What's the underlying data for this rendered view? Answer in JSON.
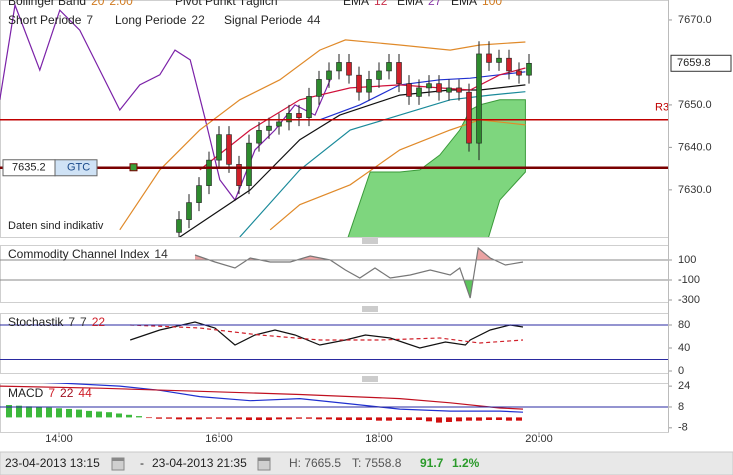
{
  "chart_data": [
    {
      "type": "candlestick",
      "legend": [
        {
          "name": "Bollinger Band",
          "params": [
            {
              "value": 20,
              "color": "#d07a20"
            },
            {
              "value": "2.00",
              "color": "#d07a20"
            }
          ]
        },
        {
          "name": "Pivot Punkt Täglich",
          "params": []
        },
        {
          "name": "EMA",
          "params": [
            {
              "value": 12,
              "color": "#c8304a"
            }
          ]
        },
        {
          "name": "EMA",
          "params": [
            {
              "value": 27,
              "color": "#8a3aa8"
            }
          ]
        },
        {
          "name": "EMA",
          "params": [
            {
              "value": 100,
              "color": "#d07a20"
            }
          ]
        },
        {
          "name": "Short Periode",
          "params": [
            {
              "value": 7,
              "color": "#333333"
            }
          ]
        },
        {
          "name": "Long Periode",
          "params": [
            {
              "value": 22,
              "color": "#333333"
            }
          ]
        },
        {
          "name": "Signal Periode",
          "params": [
            {
              "value": 44,
              "color": "#333333"
            }
          ]
        }
      ],
      "annotation": "Daten sind indikativ",
      "ylim": [
        7618.9,
        7674.7
      ],
      "yticks": [
        {
          "value": 7630,
          "label": "7630.0"
        },
        {
          "value": 7640,
          "label": "7640.0"
        },
        {
          "value": 7650,
          "label": "7650.0"
        },
        {
          "value": 7670,
          "label": "7670.0"
        }
      ],
      "up_color": "#2e8b2e",
      "down_color": "#d0202a",
      "x": [
        15.5,
        15.625,
        15.75,
        15.875,
        16,
        16.125,
        16.25,
        16.375,
        16.5,
        16.625,
        16.75,
        16.875,
        17,
        17.125,
        17.25,
        17.375,
        17.5,
        17.625,
        17.75,
        17.875,
        18,
        18.125,
        18.25,
        18.375,
        18.5,
        18.625,
        18.75,
        18.875,
        19,
        19.125,
        19.25,
        19.375,
        19.5,
        19.625,
        19.75,
        19.875
      ],
      "open": [
        7620,
        7623,
        7627,
        7631,
        7637,
        7643,
        7636,
        7631,
        7641,
        7644,
        7645,
        7646,
        7648,
        7647,
        7652,
        7656,
        7658,
        7660,
        7657,
        7653,
        7656,
        7658,
        7660,
        7655,
        7652,
        7654,
        7655,
        7653,
        7654,
        7653,
        7641,
        7662,
        7660,
        7661,
        7658,
        7657
      ],
      "high": [
        7625,
        7629,
        7633,
        7639,
        7645,
        7645,
        7638,
        7643,
        7646,
        7647,
        7648,
        7650,
        7650,
        7654,
        7658,
        7660,
        7662,
        7662,
        7659,
        7658,
        7660,
        7662,
        7662,
        7657,
        7656,
        7657,
        7657,
        7656,
        7656,
        7655,
        7665,
        7665,
        7663,
        7663,
        7660,
        7662
      ],
      "low": [
        7618,
        7621,
        7625,
        7629,
        7635,
        7634,
        7629,
        7629,
        7639,
        7642,
        7643,
        7644,
        7645,
        7645,
        7650,
        7654,
        7656,
        7655,
        7651,
        7651,
        7654,
        7656,
        7653,
        7650,
        7650,
        7652,
        7651,
        7651,
        7651,
        7639,
        7637,
        7658,
        7658,
        7656,
        7655,
        7655
      ],
      "close": [
        7623,
        7627,
        7631,
        7637,
        7643,
        7636,
        7631,
        7641,
        7644,
        7645,
        7646,
        7648,
        7647,
        7652,
        7656,
        7658,
        7660,
        7657,
        7653,
        7656,
        7658,
        7660,
        7655,
        7652,
        7654,
        7655,
        7653,
        7654,
        7653,
        7641,
        7662,
        7660,
        7661,
        7658,
        7657,
        7659.8
      ],
      "series": [
        {
          "type": "area",
          "color": "#7ed67e",
          "border": "#3a9a3a",
          "x": [
            17.58,
            17.89,
            18.26,
            18.51,
            18.76,
            19.01,
            19.14,
            19.26,
            19.51,
            19.83
          ],
          "values": [
            7617,
            7634.2,
            7634.2,
            7634.7,
            7638.2,
            7644.1,
            7648.8,
            7650.0,
            7651.2,
            7651.2
          ],
          "lower": [
            7612,
            7612,
            7612,
            7612,
            7612,
            7612,
            7612,
            7612,
            7627.6,
            7634.2
          ]
        },
        {
          "type": "line",
          "color": "#7b22a8",
          "x": [
            13.26,
            13.45,
            13.76,
            14.01,
            14.26,
            14.51,
            14.76,
            15.01,
            15.26,
            15.45,
            15.64,
            15.83,
            16.01,
            16.2,
            16.45,
            16.7,
            16.95,
            17.2,
            17.39
          ],
          "values": [
            7651.2,
            7673.5,
            7658.2,
            7672.3,
            7667.6,
            7658.2,
            7648.8,
            7654.7,
            7657.1,
            7662.9,
            7660.6,
            7646.5,
            7632.4,
            7627.6,
            7639.4,
            7644.1,
            7650.0,
            7647.6,
            7655.9
          ]
        },
        {
          "type": "line",
          "color": "#e08a2a",
          "x": [
            14.76,
            15.26,
            15.76,
            16.26,
            16.76,
            17.26,
            17.58,
            18.26,
            18.89,
            19.26,
            19.83
          ],
          "values": [
            7620.6,
            7634.7,
            7644.1,
            7651.2,
            7655.9,
            7662.9,
            7665.3,
            7664.1,
            7662.9,
            7664.1,
            7664.8
          ]
        },
        {
          "type": "line",
          "color": "#e08a2a",
          "x": [
            16.64,
            17.01,
            17.64,
            18.26,
            18.89,
            19.26,
            19.83
          ],
          "values": [
            7620.6,
            7626.5,
            7631.2,
            7639.4,
            7644.1,
            7646.5,
            7645.3
          ]
        },
        {
          "type": "line",
          "color": "#111111",
          "x": [
            15.51,
            16.39,
            17.01,
            17.51,
            18.26,
            18.89,
            19.26,
            19.83
          ],
          "values": [
            7618.9,
            7630.0,
            7641.8,
            7647.6,
            7652.3,
            7653.5,
            7653.5,
            7654.7
          ]
        },
        {
          "type": "line",
          "color": "#2030d0",
          "x": [
            17.26,
            17.76,
            18.26,
            18.76,
            19.14,
            19.83
          ],
          "values": [
            7646.5,
            7650.0,
            7654.7,
            7655.9,
            7656.3,
            7657.8
          ]
        },
        {
          "type": "line",
          "color": "#d0103a",
          "x": [
            15.76,
            16.39,
            17.01,
            17.64,
            18.26,
            18.76,
            19.14,
            19.51,
            19.83
          ],
          "values": [
            7634.7,
            7644.1,
            7651.2,
            7654.0,
            7654.7,
            7654.0,
            7653.5,
            7657.1,
            7658.7
          ]
        },
        {
          "type": "line",
          "color": "#1a8a9a",
          "x": [
            16.26,
            17.01,
            17.64,
            18.26,
            18.89,
            19.39,
            19.83
          ],
          "values": [
            7618.9,
            7634.7,
            7644.1,
            7647.6,
            7651.2,
            7652.3,
            7653.1
          ]
        }
      ],
      "levels": [
        {
          "value": 7646.5,
          "label": "R3",
          "color": "#c00000"
        }
      ],
      "order": {
        "price": 7635.2,
        "type": "GTC",
        "color": "#7a0000"
      },
      "last": 7659.8
    },
    {
      "type": "line",
      "legend": [
        {
          "name": "Commodity Channel Index",
          "params": [
            {
              "value": 14,
              "color": "#333333"
            }
          ]
        }
      ],
      "ylim": [
        -320,
        250
      ],
      "yticks": [
        100,
        -100,
        -300
      ],
      "levels": [
        100,
        -100
      ],
      "level_color": "#888888",
      "series": [
        {
          "type": "line",
          "color": "#777777",
          "x": [
            15.7,
            15.95,
            16.2,
            16.39,
            16.64,
            16.89,
            17.14,
            17.39,
            17.58,
            17.76,
            17.95,
            18.14,
            18.39,
            18.64,
            18.89,
            19.01,
            19.14,
            19.24,
            19.39,
            19.58,
            19.8
          ],
          "values": [
            150,
            80,
            20,
            120,
            80,
            80,
            140,
            100,
            0,
            -80,
            20,
            -80,
            -50,
            0,
            -50,
            20,
            -280,
            220,
            120,
            50,
            80
          ],
          "fills": [
            {
              "level": 100,
              "side": "above",
              "color": "#eba3a3"
            },
            {
              "level": -100,
              "side": "below",
              "color": "#5cc45c"
            }
          ]
        }
      ]
    },
    {
      "type": "line",
      "legend": [
        {
          "name": "Stochastik",
          "params": [
            {
              "value": 7,
              "color": "#333333"
            },
            {
              "value": 7,
              "color": "#333333"
            },
            {
              "value": 22,
              "color": "#d0202a"
            }
          ]
        }
      ],
      "ylim": [
        -3.5,
        100.9
      ],
      "yticks": [
        80,
        40,
        0
      ],
      "levels": [
        80,
        20
      ],
      "level_color": "#2a2aa0",
      "series": [
        {
          "type": "line",
          "color": "#111111",
          "x": [
            14.89,
            15.26,
            15.7,
            15.95,
            16.2,
            16.45,
            16.7,
            16.95,
            17.26,
            17.58,
            17.83,
            18.14,
            18.51,
            18.83,
            19.08,
            19.14,
            19.39,
            19.64,
            19.8
          ],
          "values": [
            53.9,
            71.3,
            85.2,
            74.8,
            45.2,
            62.6,
            71.3,
            62.6,
            45.2,
            53.9,
            62.6,
            57.4,
            40.0,
            50.4,
            45.2,
            53.9,
            71.3,
            80.0,
            76.5
          ]
        },
        {
          "type": "line",
          "color": "#d0202a",
          "dashed": true,
          "x": [
            14.89,
            15.76,
            16.51,
            17.26,
            18.01,
            18.76,
            19.26,
            19.8
          ],
          "values": [
            80,
            74.8,
            62.6,
            53.9,
            53.9,
            57.4,
            48.7,
            53.9
          ]
        }
      ]
    },
    {
      "type": "line",
      "legend": [
        {
          "name": "MACD",
          "params": [
            {
              "value": 7,
              "color": "#d0202a"
            },
            {
              "value": 22,
              "color": "#a01020"
            },
            {
              "value": 44,
              "color": "#d0202a"
            }
          ]
        }
      ],
      "ylim": [
        -11.2,
        26.4
      ],
      "yticks": [
        24,
        8,
        -8
      ],
      "levels": [
        8
      ],
      "level_color": "#2a2aa0",
      "xlim": [
        13.2625,
        21.6125
      ],
      "xticks": [
        {
          "value": 14,
          "label": "14:00"
        },
        {
          "value": 16,
          "label": "16:00"
        },
        {
          "value": 18,
          "label": "18:00"
        },
        {
          "value": 20,
          "label": "20:00"
        }
      ],
      "series": [
        {
          "type": "bar",
          "color": "#3cb83c",
          "negative_color": "#d01010",
          "x": [
            13.375,
            13.5,
            13.625,
            13.75,
            13.875,
            14,
            14.125,
            14.25,
            14.375,
            14.5,
            14.625,
            14.75,
            14.875,
            15,
            15.125,
            15.25,
            15.375,
            15.5,
            15.625,
            15.75,
            15.875,
            16,
            16.125,
            16.25,
            16.375,
            16.5,
            16.625,
            16.75,
            16.875,
            17,
            17.125,
            17.25,
            17.375,
            17.5,
            17.625,
            17.75,
            17.875,
            18,
            18.125,
            18.25,
            18.375,
            18.5,
            18.625,
            18.75,
            18.875,
            19,
            19.125,
            19.25,
            19.375,
            19.5,
            19.625,
            19.75
          ],
          "values": [
            9.5,
            9,
            8.5,
            8,
            7.5,
            7,
            6.5,
            6,
            5,
            4.5,
            4,
            3,
            2,
            1,
            -0.5,
            -1,
            -1,
            -1.5,
            -1.5,
            -1.5,
            -1,
            -1,
            -1.5,
            -1.5,
            -2,
            -2,
            -2,
            -1.5,
            -1.5,
            -1,
            -1,
            -1.5,
            -1.5,
            -2,
            -2,
            -2,
            -2,
            -2.5,
            -2.5,
            -2,
            -2,
            -2,
            -3,
            -4,
            -3.5,
            -3,
            -2.5,
            -2.5,
            -2,
            -2,
            -2.5,
            -2.5
          ]
        },
        {
          "type": "line",
          "color": "#2030d0",
          "x": [
            13.26,
            14.01,
            14.76,
            15.26,
            15.76,
            16.39,
            17.01,
            17.64,
            18.26,
            18.89,
            19.51,
            19.8
          ],
          "values": [
            28,
            26.4,
            24,
            20.8,
            16,
            12.8,
            14.4,
            10.4,
            6.4,
            4.8,
            4.8,
            4
          ]
        },
        {
          "type": "line",
          "color": "#c01020",
          "x": [
            13.26,
            14.51,
            15.76,
            17.01,
            18.26,
            18.89,
            19.51,
            19.8
          ],
          "values": [
            24,
            22.4,
            20,
            17.6,
            14.4,
            11.2,
            7.2,
            6.4
          ]
        }
      ]
    }
  ],
  "footer": {
    "from": "23-04-2013 13:15",
    "separator": "-",
    "to": "23-04-2013 21:35",
    "high": "H: 7665.5",
    "low": "T: 7558.8",
    "change": "91.7",
    "change_pct": "1.2%"
  }
}
